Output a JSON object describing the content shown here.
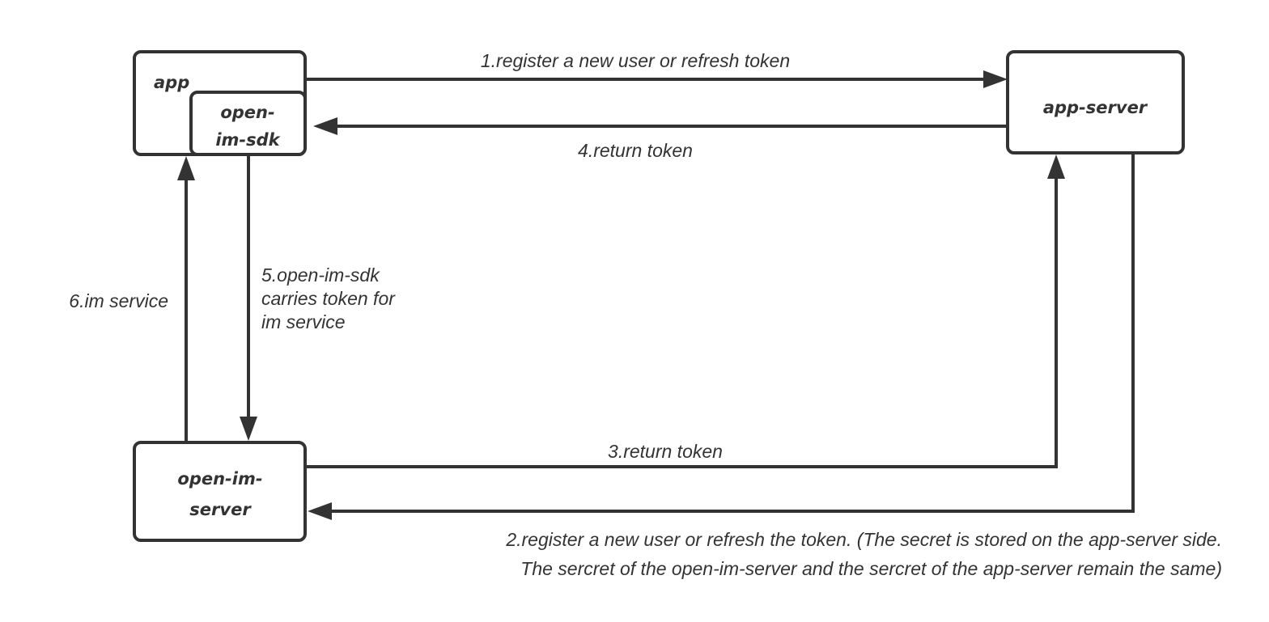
{
  "nodes": {
    "app": "app",
    "sdk_line1": "open-",
    "sdk_line2": "im-sdk",
    "app_server": "app-server",
    "im_server_line1": "open-im-",
    "im_server_line2": "server"
  },
  "edges": {
    "step1": "1.register a new user or refresh token",
    "step2_line1": "2.register a new user or refresh the token. (The secret is stored on the app-server side.",
    "step2_line2": "The sercret of the open-im-server and the sercret of the app-server remain the same)",
    "step3": "3.return token",
    "step4": "4.return token",
    "step5_line1": "5.open-im-sdk",
    "step5_line2": "carries token for",
    "step5_line3": "im service",
    "step6": "6.im service"
  }
}
